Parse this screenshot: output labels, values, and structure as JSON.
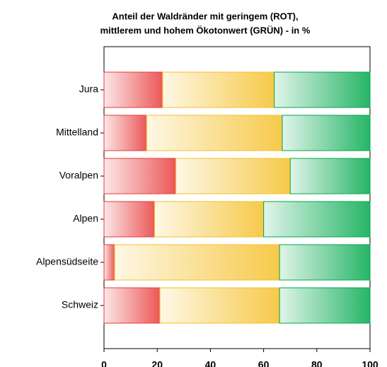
{
  "chart_data": {
    "type": "stacked-barh",
    "title": [
      "Anteil der Waldränder mit geringem (ROT),",
      "mittlerem und hohem Ökotonwert (GRÜN) - in %"
    ],
    "categories": [
      "Jura",
      "Mittelland",
      "Voralpen",
      "Alpen",
      "Alpensüdseite",
      "Schweiz"
    ],
    "series": [
      {
        "color": "#e83a3a",
        "values": [
          22,
          16,
          27,
          19,
          4,
          21
        ]
      },
      {
        "color": "#f5c02a",
        "values": [
          42,
          51,
          43,
          41,
          62,
          45
        ]
      },
      {
        "color": "#00a84c",
        "values": [
          36,
          33,
          30,
          40,
          34,
          34
        ]
      }
    ],
    "xlim": [
      0,
      100
    ],
    "xticks": [
      0,
      20,
      40,
      60,
      80,
      100
    ],
    "grid": false
  }
}
